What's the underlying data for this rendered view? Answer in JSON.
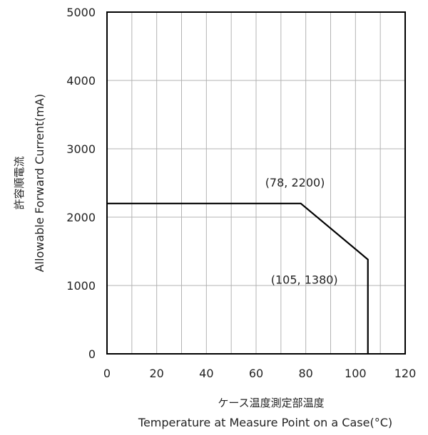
{
  "chart_data": {
    "type": "line",
    "title": "",
    "xlabel_jp": "ケース温度測定部温度",
    "xlabel": "Temperature at Measure Point on a Case(°C)",
    "ylabel_jp": "許容順電流",
    "ylabel": "Allowable Forward Current(mA)",
    "xlim": [
      0,
      120
    ],
    "ylim": [
      0,
      5000
    ],
    "x_ticks": [
      0,
      20,
      40,
      60,
      80,
      100,
      120
    ],
    "y_ticks": [
      0,
      1000,
      2000,
      3000,
      4000,
      5000
    ],
    "x_minor_step": 10,
    "grid": true,
    "series": [
      {
        "x": [
          0,
          78,
          105,
          105
        ],
        "y": [
          2200,
          2200,
          1380,
          0
        ]
      }
    ],
    "annotations": [
      {
        "text": "(78, 2200)",
        "x": 78,
        "y": 2200
      },
      {
        "text": "(105, 1380)",
        "x": 105,
        "y": 1380
      }
    ]
  }
}
